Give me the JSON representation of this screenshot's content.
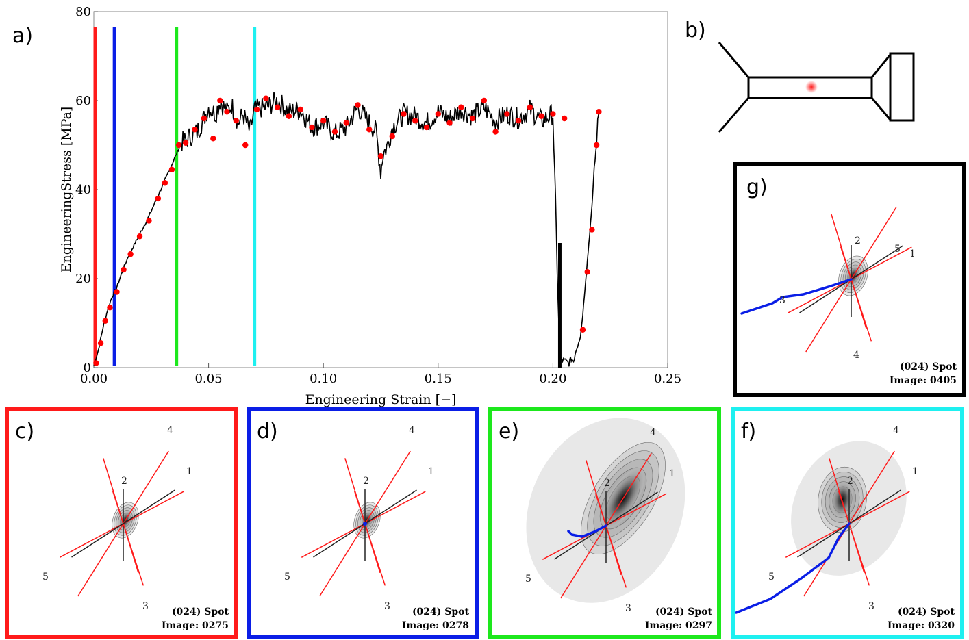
{
  "panel_labels": {
    "a": "a)",
    "b": "b)",
    "c": "c)",
    "d": "d)",
    "e": "e)",
    "f": "f)",
    "g": "g)"
  },
  "colors": {
    "red": "#ff1a1a",
    "blue": "#0a1ee6",
    "green": "#1de81d",
    "cyan": "#1ef0f0",
    "black": "#000000",
    "marker": "#ff0000"
  },
  "chart_data": {
    "type": "line",
    "xlabel": "Engineering Strain [−]",
    "ylabel": "EngineeringStress [MPa]",
    "xlim": [
      0,
      0.25
    ],
    "ylim": [
      0,
      80
    ],
    "x_ticks": [
      {
        "value": 0.0,
        "label": "0.00"
      },
      {
        "value": 0.05,
        "label": "0.05"
      },
      {
        "value": 0.1,
        "label": "0.10"
      },
      {
        "value": 0.15,
        "label": "0.15"
      },
      {
        "value": 0.2,
        "label": "0.20"
      },
      {
        "value": 0.25,
        "label": "0.25"
      }
    ],
    "y_ticks": [
      {
        "value": 0,
        "label": "0"
      },
      {
        "value": 20,
        "label": "20"
      },
      {
        "value": 40,
        "label": "40"
      },
      {
        "value": 60,
        "label": "60"
      },
      {
        "value": 80,
        "label": "80"
      }
    ],
    "curve": {
      "x": [
        0.0,
        0.002,
        0.004,
        0.006,
        0.008,
        0.01,
        0.012,
        0.015,
        0.018,
        0.021,
        0.024,
        0.027,
        0.03,
        0.033,
        0.036,
        0.038,
        0.04,
        0.042,
        0.045,
        0.048,
        0.05,
        0.053,
        0.055,
        0.058,
        0.06,
        0.063,
        0.065,
        0.068,
        0.07,
        0.075,
        0.08,
        0.085,
        0.09,
        0.095,
        0.1,
        0.105,
        0.11,
        0.115,
        0.12,
        0.123,
        0.125,
        0.126,
        0.128,
        0.13,
        0.135,
        0.14,
        0.145,
        0.15,
        0.155,
        0.16,
        0.165,
        0.17,
        0.175,
        0.18,
        0.185,
        0.19,
        0.195,
        0.2,
        0.203,
        0.205,
        0.207,
        0.208,
        0.209,
        0.21,
        0.212,
        0.213,
        0.214,
        0.215,
        0.216,
        0.217,
        0.218,
        0.219,
        0.2195,
        0.22
      ],
      "y": [
        0.5,
        4.0,
        9.0,
        13.0,
        16.0,
        18.0,
        21.0,
        25.0,
        28.0,
        31.0,
        34.0,
        37.5,
        41.0,
        44.5,
        48.0,
        50.5,
        51.0,
        52.0,
        53.0,
        56.0,
        58.5,
        57.0,
        60.0,
        57.5,
        59.0,
        55.0,
        57.0,
        53.0,
        58.0,
        58.5,
        60.0,
        57.5,
        58.0,
        54.0,
        55.0,
        52.5,
        54.0,
        58.5,
        55.0,
        53.0,
        44.0,
        48.0,
        50.0,
        54.0,
        57.0,
        56.5,
        55.0,
        57.5,
        56.0,
        58.0,
        56.5,
        58.5,
        55.5,
        57.0,
        56.0,
        58.0,
        55.5,
        57.0,
        2.0,
        1.5,
        1.0,
        2.0,
        1.5,
        4.0,
        7.0,
        12.0,
        18.0,
        24.0,
        30.0,
        36.0,
        45.0,
        50.0,
        56.0,
        57.5
      ]
    },
    "markers": {
      "x": [
        0.001,
        0.003,
        0.005,
        0.007,
        0.01,
        0.013,
        0.016,
        0.02,
        0.024,
        0.028,
        0.031,
        0.034,
        0.037,
        0.04,
        0.044,
        0.048,
        0.052,
        0.055,
        0.058,
        0.062,
        0.066,
        0.071,
        0.075,
        0.08,
        0.085,
        0.09,
        0.095,
        0.1,
        0.105,
        0.11,
        0.115,
        0.12,
        0.125,
        0.13,
        0.135,
        0.14,
        0.145,
        0.15,
        0.155,
        0.16,
        0.165,
        0.17,
        0.175,
        0.18,
        0.185,
        0.19,
        0.195,
        0.2,
        0.205,
        0.213,
        0.215,
        0.217,
        0.219,
        0.22
      ],
      "y": [
        1.0,
        5.5,
        10.5,
        13.5,
        17.0,
        22.0,
        25.5,
        29.5,
        33.0,
        38.0,
        41.5,
        44.5,
        50.0,
        50.5,
        53.5,
        56.0,
        51.5,
        60.0,
        57.5,
        55.5,
        50.0,
        58.0,
        60.5,
        58.5,
        56.5,
        58.0,
        54.0,
        55.5,
        53.0,
        55.0,
        59.0,
        53.5,
        47.5,
        52.0,
        57.0,
        55.5,
        54.0,
        57.0,
        55.0,
        58.5,
        56.0,
        60.0,
        53.0,
        57.0,
        55.5,
        58.5,
        56.5,
        57.0,
        56.0,
        8.5,
        21.5,
        31.0,
        50.0,
        57.5
      ]
    },
    "strain_markers": [
      {
        "x": 0.0,
        "color": "#ff1a1a"
      },
      {
        "x": 0.009,
        "color": "#0a1ee6"
      },
      {
        "x": 0.036,
        "color": "#1de81d"
      },
      {
        "x": 0.07,
        "color": "#1ef0f0"
      }
    ],
    "black_bar": {
      "x": 0.203,
      "y_from": 0,
      "y_to": 28
    }
  },
  "spots": [
    {
      "key": "c",
      "frame_color": "#ff1a1a",
      "spot_label": "(024) Spot",
      "image_label": "Image: 0275",
      "numbers": {
        "1": "1",
        "2": "2",
        "3": "3",
        "4": "4",
        "5": "5"
      },
      "spot_size": 0.9,
      "has_trail": false
    },
    {
      "key": "d",
      "frame_color": "#0a1ee6",
      "spot_label": "(024) Spot",
      "image_label": "Image: 0278",
      "numbers": {
        "1": "1",
        "2": "2",
        "3": "3",
        "4": "4",
        "5": "5"
      },
      "spot_size": 0.9,
      "has_trail": false
    },
    {
      "key": "e",
      "frame_color": "#1de81d",
      "spot_label": "(024) Spot",
      "image_label": "Image: 0297",
      "numbers": {
        "1": "1",
        "2": "2",
        "3": "3",
        "4": "4",
        "5": "5"
      },
      "spot_size": 2.2,
      "has_trail": true
    },
    {
      "key": "f",
      "frame_color": "#1ef0f0",
      "spot_label": "(024) Spot",
      "image_label": "Image: 0320",
      "numbers": {
        "1": "1",
        "2": "2",
        "3": "3",
        "4": "4",
        "5": "5"
      },
      "spot_size": 1.6,
      "has_trail": true
    },
    {
      "key": "g",
      "frame_color": "#000000",
      "spot_label": "(024) Spot",
      "image_label": "Image: 0405",
      "numbers": {
        "1": "1",
        "2": "2",
        "3": "3",
        "4": "4",
        "5": "5"
      },
      "spot_size": 1.0,
      "has_trail": true
    }
  ]
}
